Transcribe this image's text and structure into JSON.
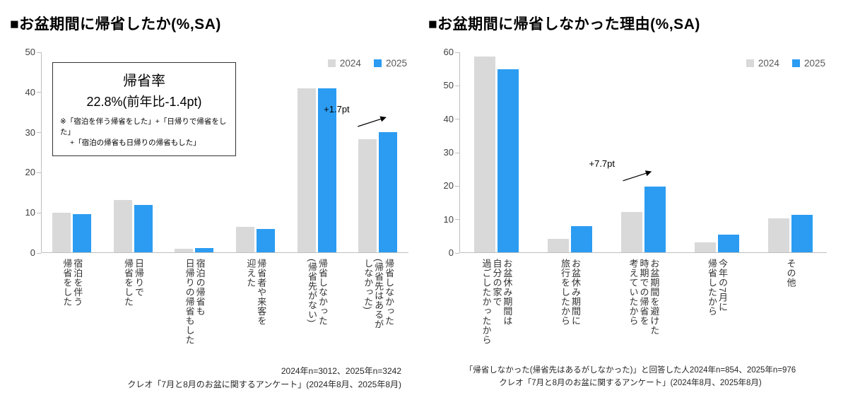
{
  "colors": {
    "series_2024": "#D9D9D9",
    "series_2025": "#2B9CF2",
    "axis": "#BFBFBF",
    "background": "#FFFFFF"
  },
  "chart_data": [
    {
      "type": "bar",
      "title": "■お盆期間に帰省したか(%,SA)",
      "xlabel": "",
      "ylabel": "",
      "ylim": [
        0,
        50
      ],
      "ystep": 10,
      "grid": false,
      "legend_position": "top-right",
      "categories": [
        "宿泊を伴う\n帰省をした",
        "日帰りで\n帰省をした",
        "宿泊の帰省も\n日帰りの帰省もした",
        "帰省者や来客を\n迎えた",
        "帰省しなかった\n(帰省先がない)",
        "帰省しなかった\n(帰省先はあるが\nしなかった)"
      ],
      "series": [
        {
          "name": "2024",
          "color": "#D9D9D9",
          "values": [
            10.0,
            13.2,
            1.0,
            6.5,
            41.0,
            28.4
          ]
        },
        {
          "name": "2025",
          "color": "#2B9CF2",
          "values": [
            9.7,
            11.9,
            1.2,
            6.0,
            41.0,
            30.1
          ]
        }
      ],
      "annotation": {
        "text": "+1.7pt",
        "category_index": 5,
        "series_index": 1
      },
      "callout": {
        "title": "帰省率",
        "value": "22.8%(前年比-1.4pt)",
        "notes": [
          "※「宿泊を伴う帰省をした」+「日帰りで帰省をした」",
          "+「宿泊の帰省も日帰りの帰省もした」"
        ]
      },
      "footer": [
        "2024年n=3012、2025年n=3242",
        "クレオ「7月と8月のお盆に関するアンケート」(2024年8月、2025年8月)"
      ]
    },
    {
      "type": "bar",
      "title": "■お盆期間に帰省しなかった理由(%,SA)",
      "xlabel": "",
      "ylabel": "",
      "ylim": [
        0,
        60
      ],
      "ystep": 10,
      "grid": false,
      "legend_position": "top-right",
      "categories": [
        "お盆休み期間は\n自分の家で\n過ごしたかったから",
        "お盆休み期間に\n旅行をしたから",
        "お盆期間を避けた\n時期での帰省を\n考えていたから",
        "今年の7月に\n帰省したから",
        "その他"
      ],
      "series": [
        {
          "name": "2024",
          "color": "#D9D9D9",
          "values": [
            58.8,
            4.3,
            12.2,
            3.2,
            10.3
          ]
        },
        {
          "name": "2025",
          "color": "#2B9CF2",
          "values": [
            55.0,
            8.0,
            19.9,
            5.5,
            11.4
          ]
        }
      ],
      "annotation": {
        "text": "+7.7pt",
        "category_index": 2,
        "series_index": 1
      },
      "footer": [
        "「帰省しなかった(帰省先はあるがしなかった)」と回答した人2024年n=854、2025年n=976",
        "クレオ「7月と8月のお盆に関するアンケート」(2024年8月、2025年8月)"
      ]
    }
  ]
}
